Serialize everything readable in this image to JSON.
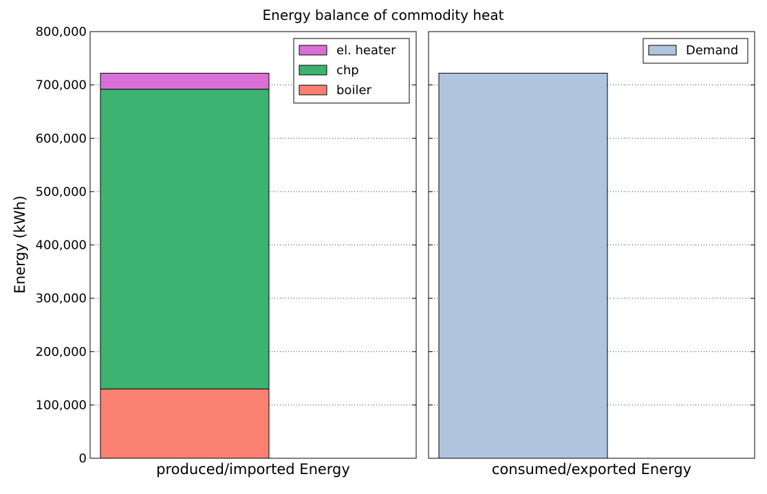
{
  "chart_data": {
    "type": "bar",
    "stacked": true,
    "title": "Energy balance of commodity heat",
    "ylabel": "Energy (kWh)",
    "ylim": [
      0,
      800000
    ],
    "yticks": [
      0,
      100000,
      200000,
      300000,
      400000,
      500000,
      600000,
      700000,
      800000
    ],
    "ytick_labels": [
      "0",
      "100,000",
      "200,000",
      "300,000",
      "400,000",
      "500,000",
      "600,000",
      "700,000",
      "800,000"
    ],
    "grid": true,
    "panels": [
      {
        "category": "produced/imported Energy",
        "legend_position": "top-right",
        "series": [
          {
            "name": "boiler",
            "value": 130000,
            "color": "#fa8072"
          },
          {
            "name": "chp",
            "value": 562000,
            "color": "#3cb371"
          },
          {
            "name": "el. heater",
            "value": 30000,
            "color": "#da70d6"
          }
        ]
      },
      {
        "category": "consumed/exported Energy",
        "legend_position": "top-right",
        "series": [
          {
            "name": "Demand",
            "value": 722000,
            "color": "#b0c4de"
          }
        ]
      }
    ]
  }
}
